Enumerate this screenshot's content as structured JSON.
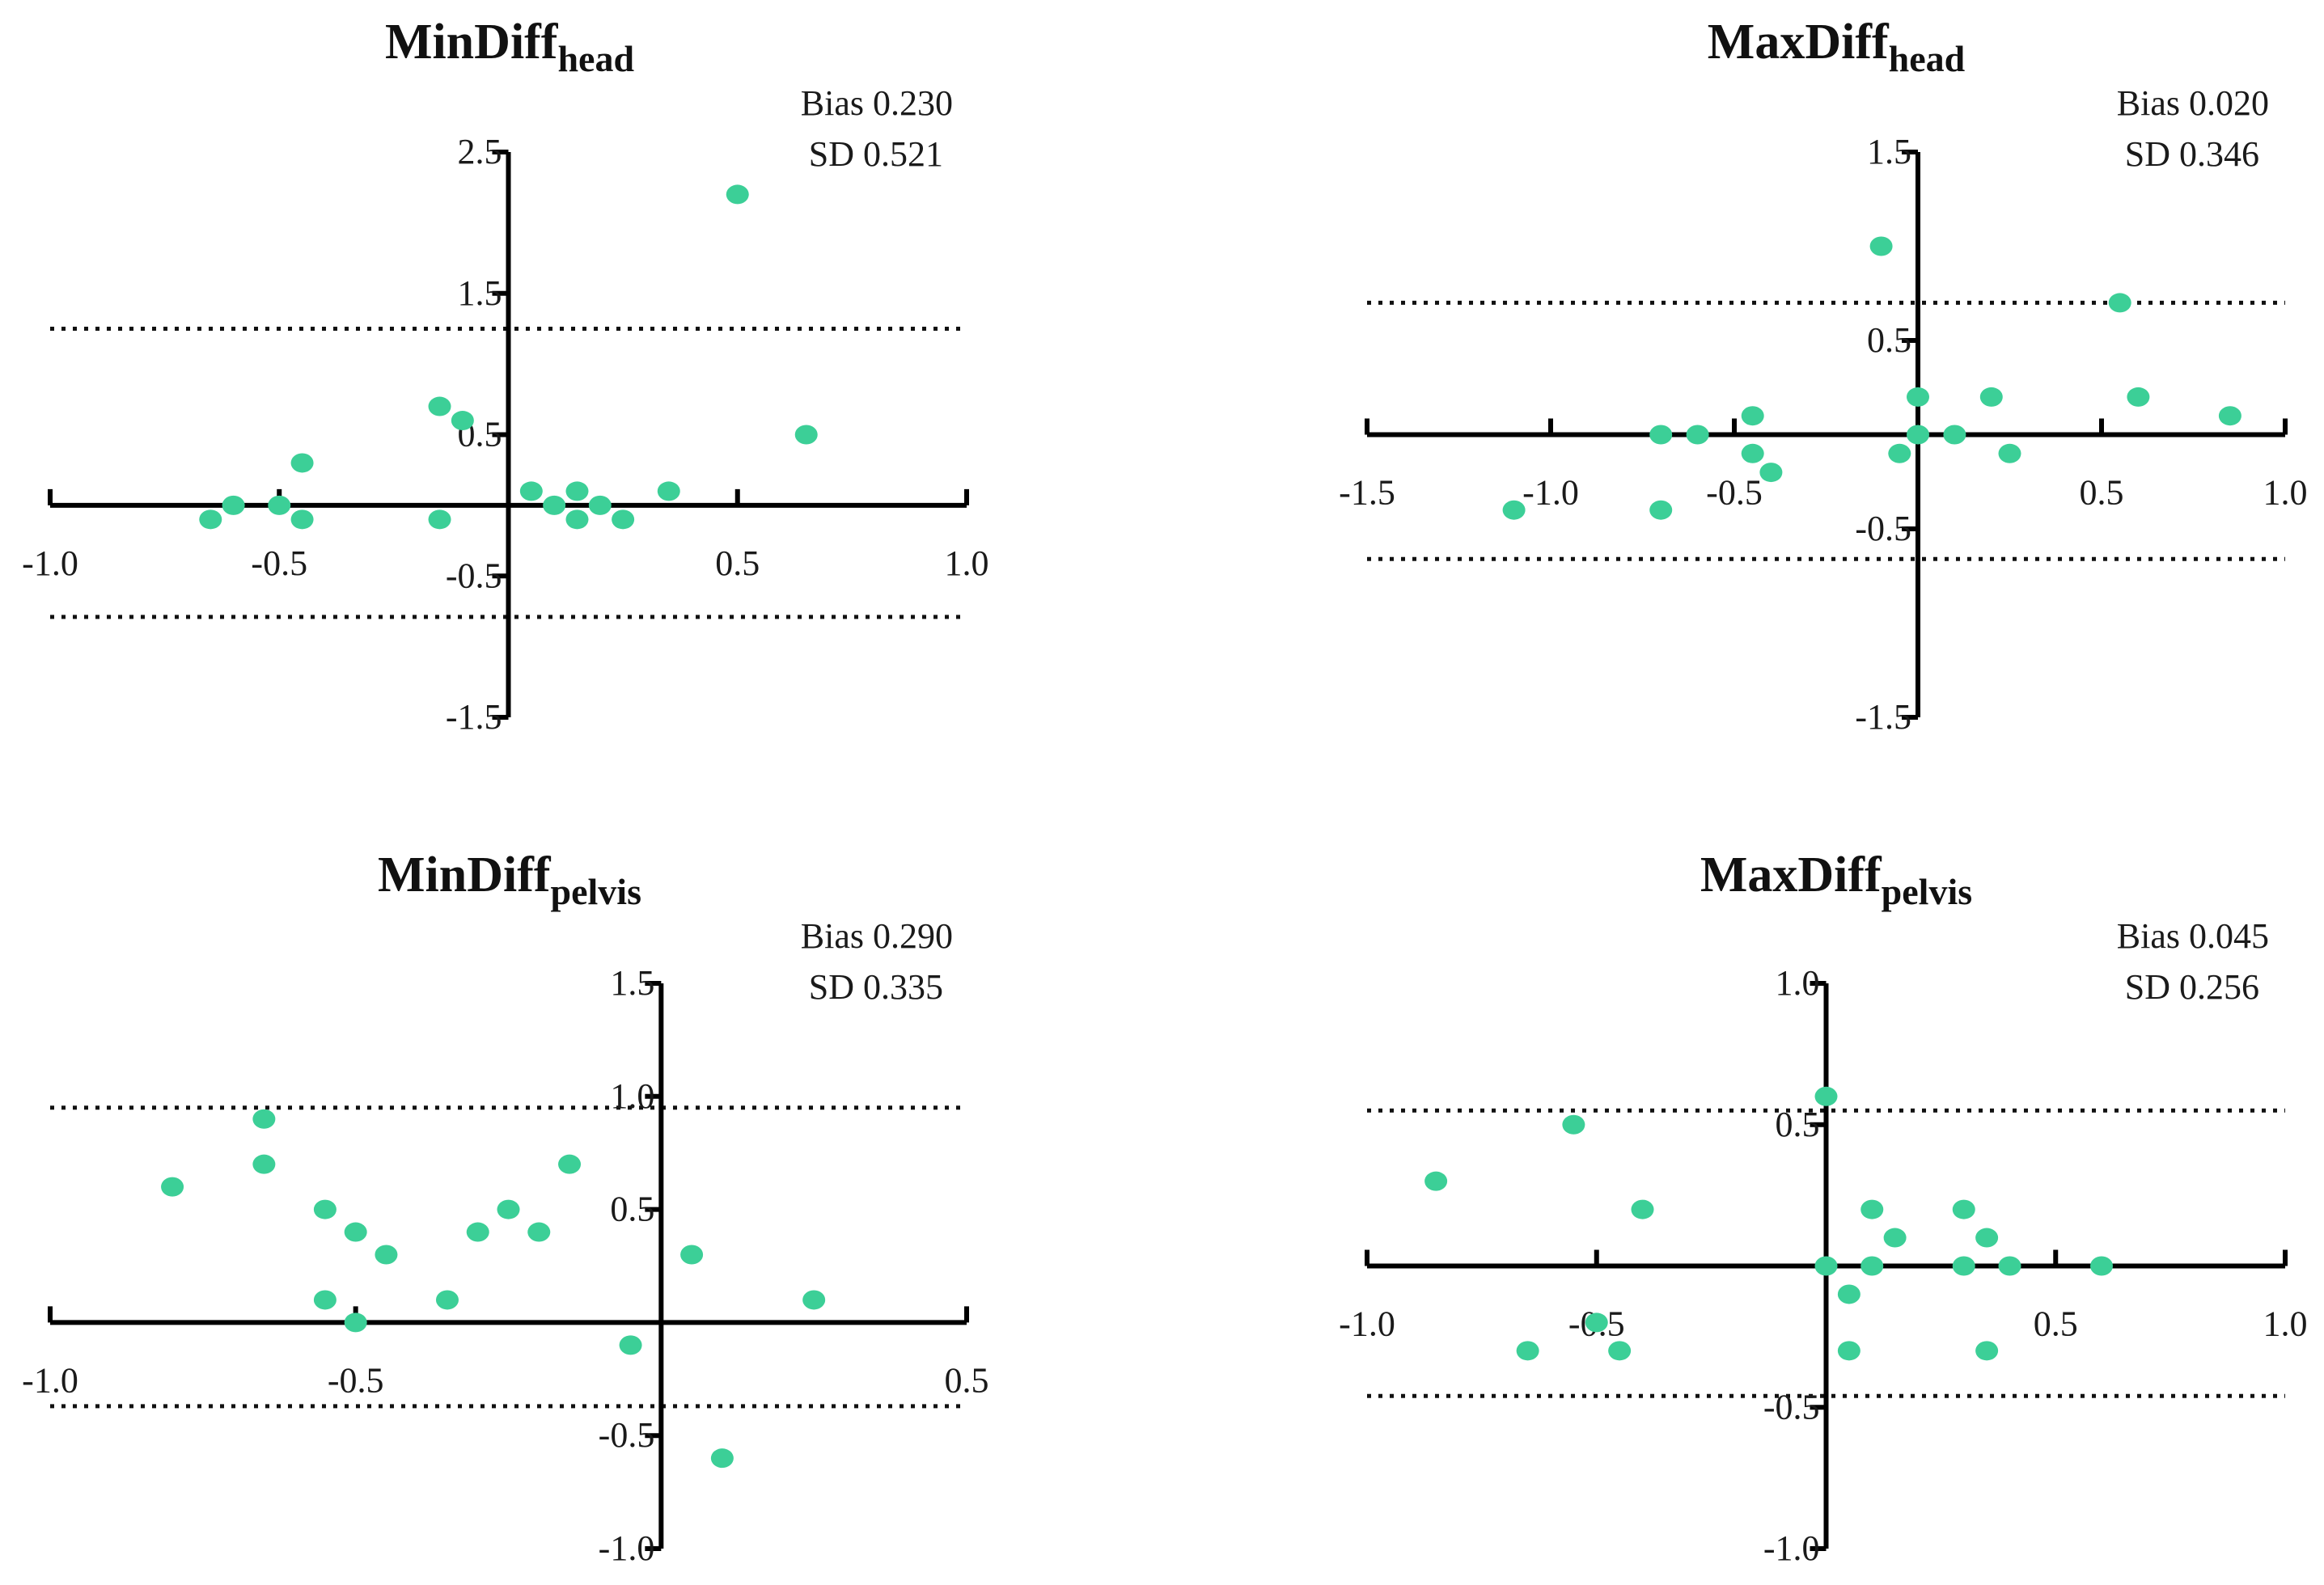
{
  "figure": {
    "point_color": "#3ccf97",
    "axis_color": "#000000"
  },
  "chart_data": [
    {
      "type": "scatter",
      "title": "MinDiff",
      "title_sub": "head",
      "bias_label": "Bias 0.230",
      "sd_label": "SD 0.521",
      "xlim": [
        -1.0,
        1.0
      ],
      "ylim": [
        -1.5,
        2.5
      ],
      "xticks": [
        -1.0,
        -0.5,
        0.5,
        1.0
      ],
      "xtick_labels": [
        "-1.0",
        "-0.5",
        "0.5",
        "1.0"
      ],
      "yticks": [
        -1.5,
        -0.5,
        0.5,
        1.5,
        2.5
      ],
      "ytick_labels": [
        "-1.5",
        "-0.5",
        "0.5",
        "1.5",
        "2.5"
      ],
      "loa": [
        1.25,
        -0.79
      ],
      "points": [
        [
          -0.65,
          -0.1
        ],
        [
          -0.6,
          0.0
        ],
        [
          -0.5,
          0.0
        ],
        [
          -0.45,
          0.3
        ],
        [
          -0.45,
          -0.1
        ],
        [
          -0.15,
          -0.1
        ],
        [
          -0.15,
          0.7
        ],
        [
          -0.1,
          0.6
        ],
        [
          0.05,
          0.1
        ],
        [
          0.1,
          0.0
        ],
        [
          0.15,
          0.1
        ],
        [
          0.15,
          -0.1
        ],
        [
          0.2,
          0.0
        ],
        [
          0.25,
          -0.1
        ],
        [
          0.35,
          0.1
        ],
        [
          0.5,
          2.2
        ],
        [
          0.65,
          0.5
        ]
      ]
    },
    {
      "type": "scatter",
      "title": "MaxDiff",
      "title_sub": "head",
      "bias_label": "Bias 0.020",
      "sd_label": "SD 0.346",
      "xlim": [
        -1.5,
        1.0
      ],
      "ylim": [
        -1.5,
        1.5
      ],
      "xticks": [
        -1.5,
        -1.0,
        -0.5,
        0.5,
        1.0
      ],
      "xtick_labels": [
        "-1.5",
        "-1.0",
        "-0.5",
        "0.5",
        "1.0"
      ],
      "yticks": [
        -1.5,
        -0.5,
        0.5,
        1.5
      ],
      "ytick_labels": [
        "-1.5",
        "-0.5",
        "0.5",
        "1.5"
      ],
      "loa": [
        0.7,
        -0.66
      ],
      "points": [
        [
          -1.1,
          -0.4
        ],
        [
          -0.7,
          0.0
        ],
        [
          -0.7,
          -0.4
        ],
        [
          -0.6,
          0.0
        ],
        [
          -0.45,
          0.1
        ],
        [
          -0.45,
          -0.1
        ],
        [
          -0.4,
          -0.2
        ],
        [
          -0.1,
          1.0
        ],
        [
          -0.05,
          -0.1
        ],
        [
          0.0,
          0.2
        ],
        [
          0.0,
          0.0
        ],
        [
          0.1,
          0.0
        ],
        [
          0.2,
          0.2
        ],
        [
          0.25,
          -0.1
        ],
        [
          0.55,
          0.7
        ],
        [
          0.6,
          0.2
        ],
        [
          0.85,
          0.1
        ]
      ]
    },
    {
      "type": "scatter",
      "title": "MinDiff",
      "title_sub": "pelvis",
      "bias_label": "Bias 0.290",
      "sd_label": "SD 0.335",
      "xlim": [
        -1.0,
        0.5
      ],
      "ylim": [
        -1.0,
        1.5
      ],
      "xticks": [
        -1.0,
        -0.5,
        0.5
      ],
      "xtick_labels": [
        "-1.0",
        "-0.5",
        "0.5"
      ],
      "yticks": [
        -1.0,
        -0.5,
        0.5,
        1.0,
        1.5
      ],
      "ytick_labels": [
        "-1.0",
        "-0.5",
        "0.5",
        "1.0",
        "1.5"
      ],
      "loa": [
        0.95,
        -0.37
      ],
      "points": [
        [
          -0.8,
          0.6
        ],
        [
          -0.65,
          0.9
        ],
        [
          -0.65,
          0.7
        ],
        [
          -0.55,
          0.5
        ],
        [
          -0.55,
          0.1
        ],
        [
          -0.5,
          0.4
        ],
        [
          -0.5,
          0.0
        ],
        [
          -0.45,
          0.3
        ],
        [
          -0.35,
          0.1
        ],
        [
          -0.3,
          0.4
        ],
        [
          -0.25,
          0.5
        ],
        [
          -0.2,
          0.4
        ],
        [
          -0.15,
          0.7
        ],
        [
          -0.05,
          -0.1
        ],
        [
          0.05,
          0.3
        ],
        [
          0.1,
          -0.6
        ],
        [
          0.25,
          0.1
        ]
      ]
    },
    {
      "type": "scatter",
      "title": "MaxDiff",
      "title_sub": "pelvis",
      "bias_label": "Bias 0.045",
      "sd_label": "SD 0.256",
      "xlim": [
        -1.0,
        1.0
      ],
      "ylim": [
        -1.0,
        1.0
      ],
      "xticks": [
        -1.0,
        -0.5,
        0.5,
        1.0
      ],
      "xtick_labels": [
        "-1.0",
        "-0.5",
        "0.5",
        "1.0"
      ],
      "yticks": [
        -1.0,
        -0.5,
        0.5,
        1.0
      ],
      "ytick_labels": [
        "-1.0",
        "-0.5",
        "0.5",
        "1.0"
      ],
      "loa": [
        0.55,
        -0.46
      ],
      "points": [
        [
          -0.85,
          0.3
        ],
        [
          -0.65,
          -0.3
        ],
        [
          -0.55,
          0.5
        ],
        [
          -0.5,
          -0.2
        ],
        [
          -0.45,
          -0.3
        ],
        [
          -0.4,
          0.2
        ],
        [
          0.0,
          0.6
        ],
        [
          0.0,
          0.0
        ],
        [
          0.05,
          -0.1
        ],
        [
          0.05,
          -0.3
        ],
        [
          0.1,
          0.2
        ],
        [
          0.1,
          0.0
        ],
        [
          0.15,
          0.1
        ],
        [
          0.3,
          0.2
        ],
        [
          0.3,
          0.0
        ],
        [
          0.35,
          0.1
        ],
        [
          0.35,
          -0.3
        ],
        [
          0.4,
          0.0
        ],
        [
          0.6,
          0.0
        ]
      ]
    }
  ]
}
